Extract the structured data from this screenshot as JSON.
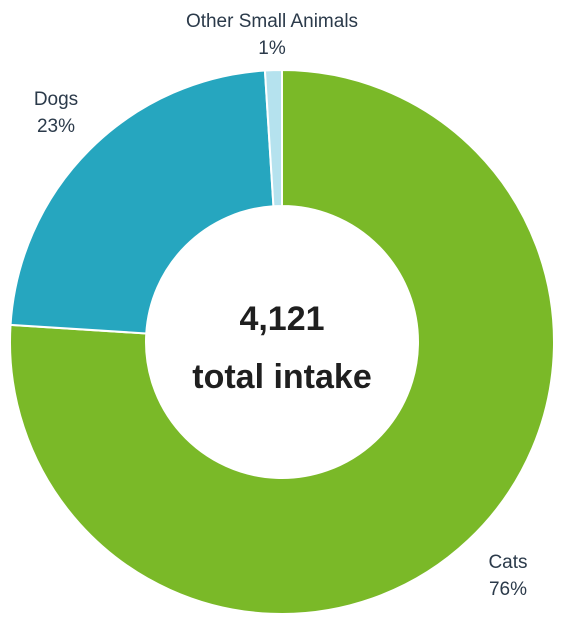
{
  "chart_data": {
    "type": "pie",
    "center": {
      "value": "4,121",
      "label": "total intake"
    },
    "slices": [
      {
        "name": "Cats",
        "value": 76,
        "label": "76%",
        "color": "#7ab928"
      },
      {
        "name": "Dogs",
        "value": 23,
        "label": "23%",
        "color": "#26a6bf"
      },
      {
        "name": "Other Small Animals",
        "value": 1,
        "label": "1%",
        "color": "#b5e2ee"
      }
    ],
    "donut": true
  }
}
